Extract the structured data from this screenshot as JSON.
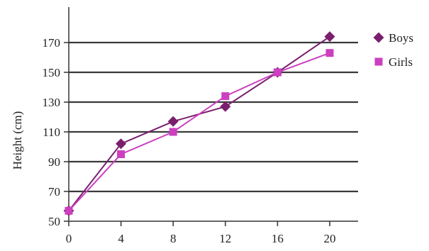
{
  "chart_data": {
    "type": "line",
    "title": "",
    "xlabel": "",
    "ylabel": "Height (cm)",
    "x": [
      0,
      4,
      8,
      12,
      16,
      20
    ],
    "x_ticks": [
      "0",
      "4",
      "8",
      "12",
      "16",
      "20"
    ],
    "y_ticks": [
      "50",
      "70",
      "90",
      "110",
      "130",
      "150",
      "170"
    ],
    "xlim": [
      0,
      20
    ],
    "ylim": [
      50,
      190
    ],
    "grid": "horizontal",
    "legend_position": "right",
    "series": [
      {
        "name": "Boys",
        "marker": "diamond",
        "color": "#7a1f6e",
        "values": [
          57,
          102,
          117,
          127,
          150,
          174
        ]
      },
      {
        "name": "Girls",
        "marker": "square",
        "color": "#cc3fbf",
        "values": [
          57,
          95,
          110,
          134,
          150,
          163
        ]
      }
    ]
  }
}
